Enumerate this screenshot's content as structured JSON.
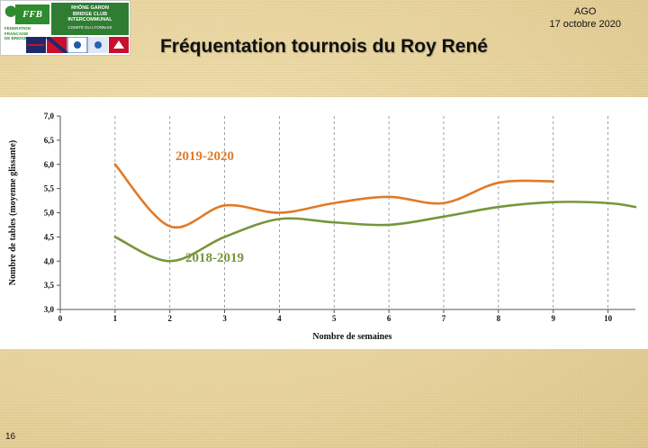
{
  "header": {
    "title": "Fréquentation tournois du Roy René",
    "ago_line1": "AGO",
    "ago_line2": "17 octobre 2020"
  },
  "logo": {
    "ffb": "FFB",
    "federation_text": "FEDERATION FRANCAISE DE BRIDGE",
    "club_line1": "RHÔNE GARON",
    "club_line2": "BRIDGE CLUB",
    "club_line3": "INTERCOMMUNAL",
    "club_line4": "COMITÉ DU LYONNAIS"
  },
  "footer": {
    "page_number": "16"
  },
  "colors": {
    "series_2019_2020": "#e07a28",
    "series_2018_2019": "#77963a",
    "background": "#e9d7a3"
  },
  "chart_data": {
    "type": "line",
    "title": "",
    "xlabel": "Nombre de semaines",
    "ylabel": "Nombre de tables (moyenne glissante)",
    "xlim": [
      0,
      10.5
    ],
    "ylim": [
      3.0,
      7.0
    ],
    "x_ticks": [
      "0",
      "1",
      "2",
      "3",
      "4",
      "5",
      "6",
      "7",
      "8",
      "9",
      "10"
    ],
    "y_ticks": [
      "3,0",
      "3,5",
      "4,0",
      "4,5",
      "5,0",
      "5,5",
      "6,0",
      "6,5",
      "7,0"
    ],
    "grid": "vertical dashed",
    "series": [
      {
        "name": "2019-2020",
        "x": [
          1,
          2,
          3,
          4,
          5,
          6,
          7,
          8,
          9
        ],
        "values": [
          6.0,
          4.72,
          5.15,
          5.0,
          5.2,
          5.33,
          5.2,
          5.62,
          5.65
        ]
      },
      {
        "name": "2018-2019",
        "x": [
          1,
          2,
          3,
          4,
          5,
          6,
          7,
          8,
          9,
          10,
          10.5
        ],
        "values": [
          4.5,
          4.0,
          4.5,
          4.87,
          4.8,
          4.75,
          4.92,
          5.12,
          5.22,
          5.2,
          5.12
        ]
      }
    ]
  }
}
